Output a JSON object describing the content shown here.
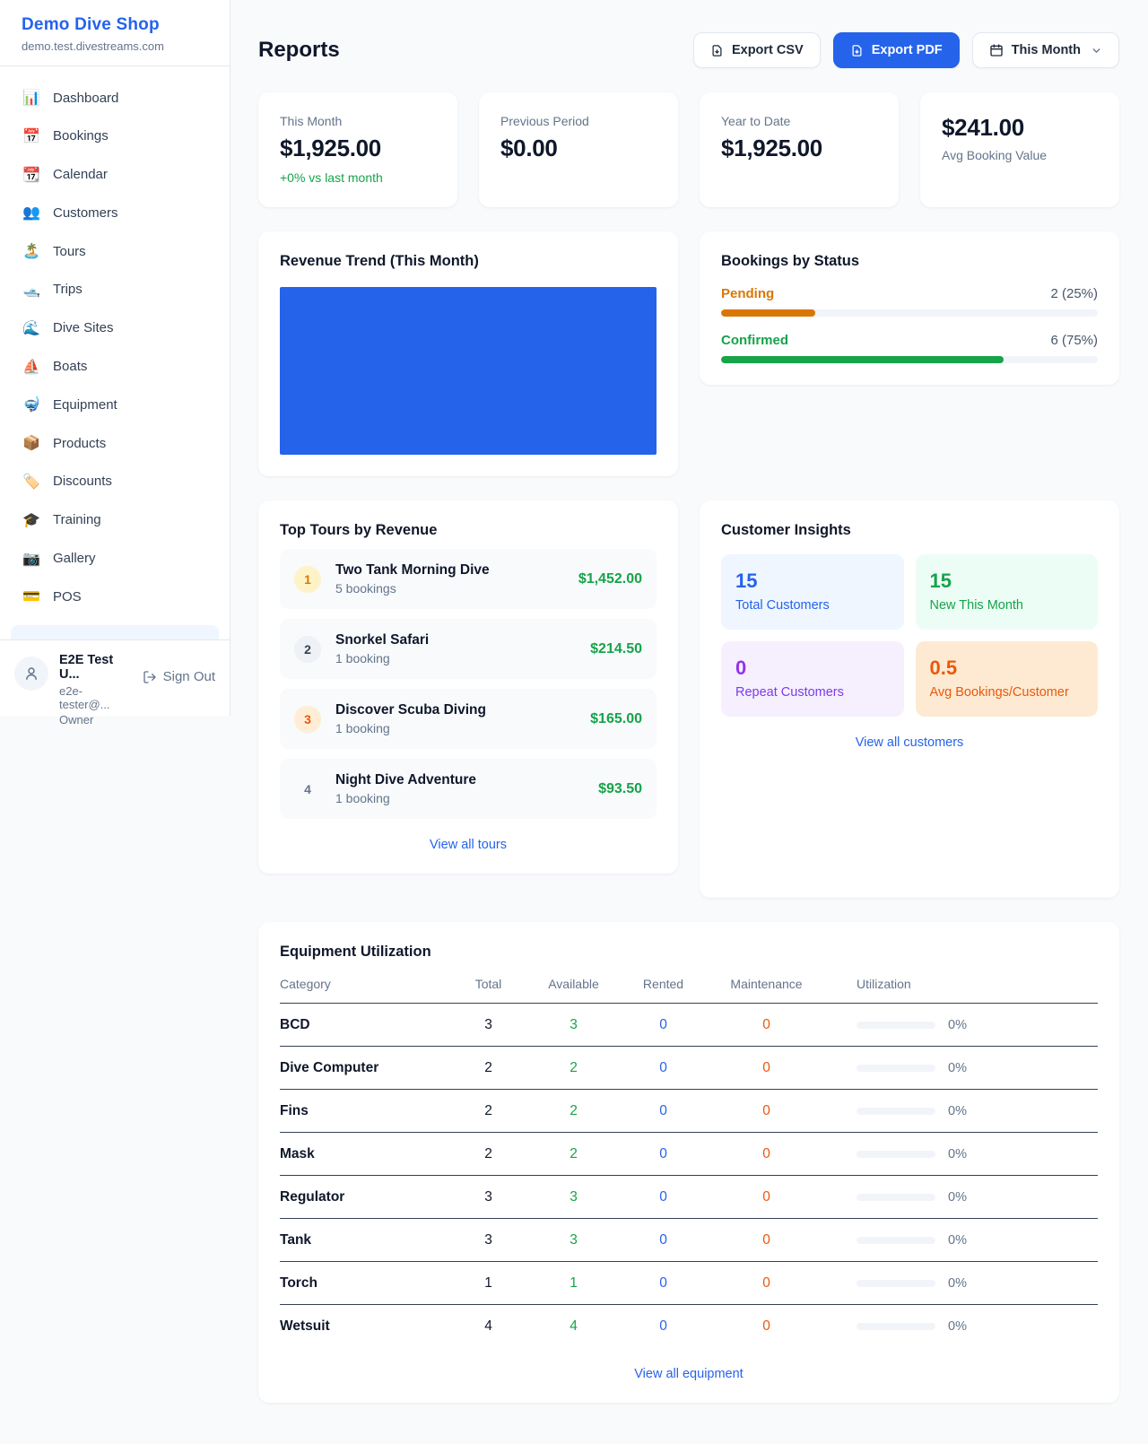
{
  "sidebar": {
    "brand": {
      "name": "Demo Dive Shop",
      "domain": "demo.test.divestreams.com"
    },
    "items": [
      {
        "icon": "📊",
        "label": "Dashboard"
      },
      {
        "icon": "📅",
        "label": "Bookings"
      },
      {
        "icon": "📆",
        "label": "Calendar"
      },
      {
        "icon": "👥",
        "label": "Customers"
      },
      {
        "icon": "🏝️",
        "label": "Tours"
      },
      {
        "icon": "🛥️",
        "label": "Trips"
      },
      {
        "icon": "🌊",
        "label": "Dive Sites"
      },
      {
        "icon": "⛵",
        "label": "Boats"
      },
      {
        "icon": "🤿",
        "label": "Equipment"
      },
      {
        "icon": "📦",
        "label": "Products"
      },
      {
        "icon": "🏷️",
        "label": "Discounts"
      },
      {
        "icon": "🎓",
        "label": "Training"
      },
      {
        "icon": "📷",
        "label": "Gallery"
      },
      {
        "icon": "💳",
        "label": "POS"
      }
    ],
    "user": {
      "name": "E2E Test U...",
      "email": "e2e-tester@...",
      "role": "Owner",
      "sign_out": "Sign Out"
    }
  },
  "header": {
    "title": "Reports",
    "export_csv": "Export CSV",
    "export_pdf": "Export PDF",
    "period": "This Month"
  },
  "stats": [
    {
      "label": "This Month",
      "value": "$1,925.00",
      "note": "+0% vs last month"
    },
    {
      "label": "Previous Period",
      "value": "$0.00"
    },
    {
      "label": "Year to Date",
      "value": "$1,925.00"
    },
    {
      "label": "Avg Booking Value",
      "value": "$241.00"
    }
  ],
  "revenue_trend": {
    "title": "Revenue Trend (This Month)"
  },
  "bookings_by_status": {
    "title": "Bookings by Status",
    "rows": [
      {
        "label": "Pending",
        "count_text": "2 (25%)",
        "percent": 25
      },
      {
        "label": "Confirmed",
        "count_text": "6 (75%)",
        "percent": 75
      }
    ]
  },
  "top_tours": {
    "title": "Top Tours by Revenue",
    "rows": [
      {
        "rank": "1",
        "name": "Two Tank Morning Dive",
        "bookings": "5 bookings",
        "revenue": "$1,452.00"
      },
      {
        "rank": "2",
        "name": "Snorkel Safari",
        "bookings": "1 booking",
        "revenue": "$214.50"
      },
      {
        "rank": "3",
        "name": "Discover Scuba Diving",
        "bookings": "1 booking",
        "revenue": "$165.00"
      },
      {
        "rank": "4",
        "name": "Night Dive Adventure",
        "bookings": "1 booking",
        "revenue": "$93.50"
      }
    ],
    "view_all": "View all tours"
  },
  "customer_insights": {
    "title": "Customer Insights",
    "tiles": [
      {
        "value": "15",
        "label": "Total Customers"
      },
      {
        "value": "15",
        "label": "New This Month"
      },
      {
        "value": "0",
        "label": "Repeat Customers"
      },
      {
        "value": "0.5",
        "label": "Avg Bookings/Customer"
      }
    ],
    "view_all": "View all customers"
  },
  "equipment": {
    "title": "Equipment Utilization",
    "columns": [
      "Category",
      "Total",
      "Available",
      "Rented",
      "Maintenance",
      "Utilization"
    ],
    "rows": [
      {
        "category": "BCD",
        "total": "3",
        "available": "3",
        "rented": "0",
        "maintenance": "0",
        "utilization": "0%",
        "utilization_percent": 0
      },
      {
        "category": "Dive Computer",
        "total": "2",
        "available": "2",
        "rented": "0",
        "maintenance": "0",
        "utilization": "0%",
        "utilization_percent": 0
      },
      {
        "category": "Fins",
        "total": "2",
        "available": "2",
        "rented": "0",
        "maintenance": "0",
        "utilization": "0%",
        "utilization_percent": 0
      },
      {
        "category": "Mask",
        "total": "2",
        "available": "2",
        "rented": "0",
        "maintenance": "0",
        "utilization": "0%",
        "utilization_percent": 0
      },
      {
        "category": "Regulator",
        "total": "3",
        "available": "3",
        "rented": "0",
        "maintenance": "0",
        "utilization": "0%",
        "utilization_percent": 0
      },
      {
        "category": "Tank",
        "total": "3",
        "available": "3",
        "rented": "0",
        "maintenance": "0",
        "utilization": "0%",
        "utilization_percent": 0
      },
      {
        "category": "Torch",
        "total": "1",
        "available": "1",
        "rented": "0",
        "maintenance": "0",
        "utilization": "0%",
        "utilization_percent": 0
      },
      {
        "category": "Wetsuit",
        "total": "4",
        "available": "4",
        "rented": "0",
        "maintenance": "0",
        "utilization": "0%",
        "utilization_percent": 0
      }
    ],
    "view_all": "View all equipment"
  },
  "palette": {
    "accent_blue": "#2563eb",
    "green": "#16a34a",
    "pending_orange": "#d97706",
    "maintenance_orange": "#ea580c",
    "purple": "#9333ea",
    "gray_text": "#64748b",
    "page_bg": "#f8fafc"
  }
}
